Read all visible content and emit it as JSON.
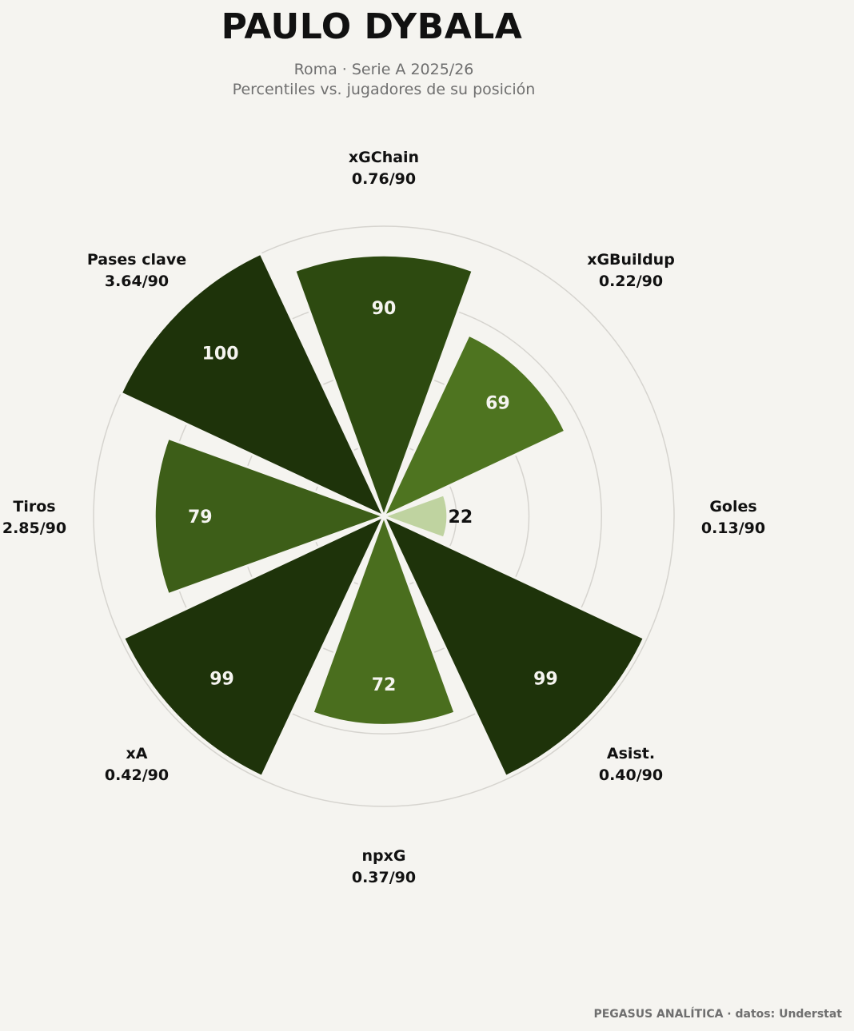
{
  "header": {
    "title": "PAULO DYBALA",
    "subtitle_line1": "Roma · Serie A 2025/26",
    "subtitle_line2": "Percentiles vs. jugadores de su posición"
  },
  "footer": {
    "credit": "PEGASUS ANALÍTICA · datos: Understat"
  },
  "colors": {
    "background": "#f5f4f0",
    "grid": "#d6d4cf",
    "band_100": "#1e330a",
    "band_90": "#2d4a10",
    "band_79": "#3d5e18",
    "band_72": "#4a6e1e",
    "band_69": "#4e7420",
    "band_22": "#bfd3a0",
    "value_label_dark": "#111111",
    "value_label_light": "#f5f4f0"
  },
  "chart_data": {
    "type": "polar-bar",
    "rlim": [
      0,
      100
    ],
    "grid": true,
    "start_angle_deg": 0,
    "direction": "clockwise",
    "series": [
      {
        "metric": "xGChain",
        "per90": "0.76/90",
        "percentile": 90
      },
      {
        "metric": "xGBuildup",
        "per90": "0.22/90",
        "percentile": 69
      },
      {
        "metric": "Goles",
        "per90": "0.13/90",
        "percentile": 22
      },
      {
        "metric": "Asist.",
        "per90": "0.40/90",
        "percentile": 99
      },
      {
        "metric": "npxG",
        "per90": "0.37/90",
        "percentile": 72
      },
      {
        "metric": "xA",
        "per90": "0.42/90",
        "percentile": 99
      },
      {
        "metric": "Tiros",
        "per90": "2.85/90",
        "percentile": 79
      },
      {
        "metric": "Pases clave",
        "per90": "3.64/90",
        "percentile": 100
      }
    ]
  }
}
